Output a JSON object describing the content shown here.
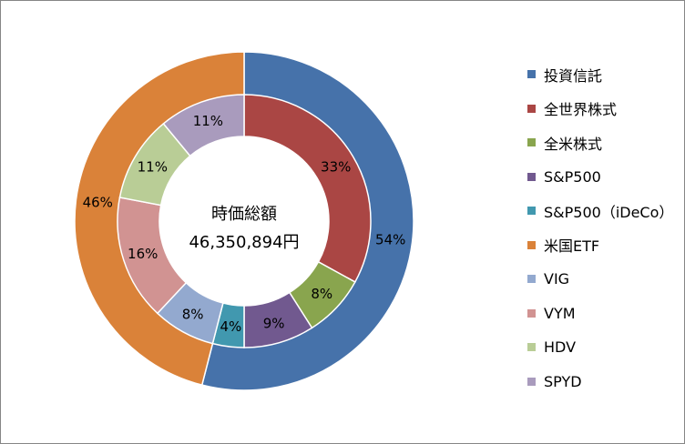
{
  "chart_data": {
    "type": "pie",
    "subtype": "double-doughnut",
    "center_label": "時価総額",
    "center_value": "46,350,894円",
    "legend_position": "right",
    "rings": [
      {
        "ring": "outer",
        "categories": [
          "投資信託",
          "米国ETF"
        ],
        "values": [
          54,
          46
        ],
        "labels": [
          "54%",
          "46%"
        ],
        "colors": [
          "#4672AA",
          "#DA8239"
        ]
      },
      {
        "ring": "inner",
        "categories": [
          "全世界株式",
          "全米株式",
          "S&P500",
          "S&P500（iDeCo）",
          "VIG",
          "VYM",
          "HDV",
          "SPYD"
        ],
        "values": [
          33,
          8,
          9,
          4,
          8,
          16,
          11,
          11
        ],
        "labels": [
          "33%",
          "8%",
          "9%",
          "4%",
          "8%",
          "16%",
          "11%",
          "11%"
        ],
        "colors": [
          "#AA4644",
          "#89A54E",
          "#71598F",
          "#4198AF",
          "#93A9CF",
          "#D19392",
          "#B9CD96",
          "#A99BBD"
        ]
      }
    ],
    "legend": [
      {
        "label": "投資信託",
        "color": "#4672AA"
      },
      {
        "label": "全世界株式",
        "color": "#AA4644"
      },
      {
        "label": "全米株式",
        "color": "#89A54E"
      },
      {
        "label": "S&P500",
        "color": "#71598F"
      },
      {
        "label": "S&P500（iDeCo）",
        "color": "#4198AF"
      },
      {
        "label": "米国ETF",
        "color": "#DA8239"
      },
      {
        "label": "VIG",
        "color": "#93A9CF"
      },
      {
        "label": "VYM",
        "color": "#D19392"
      },
      {
        "label": "HDV",
        "color": "#B9CD96"
      },
      {
        "label": "SPYD",
        "color": "#A99BBD"
      }
    ]
  }
}
